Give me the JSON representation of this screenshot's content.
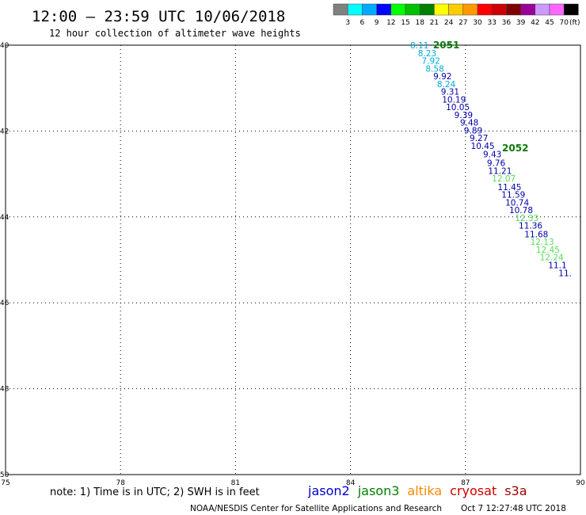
{
  "header": {
    "title": "12:00 – 23:59 UTC 10/06/2018",
    "subtitle": "12 hour collection of altimeter wave heights"
  },
  "colorbar": {
    "labels": [
      "3",
      "6",
      "9",
      "12",
      "15",
      "18",
      "21",
      "24",
      "27",
      "30",
      "33",
      "36",
      "39",
      "42",
      "45",
      "70"
    ],
    "unit": "(ft)",
    "colors": [
      "#808080",
      "#00ffff",
      "#00aaff",
      "#0000ff",
      "#00ff00",
      "#00c000",
      "#008000",
      "#ffff00",
      "#ffcc00",
      "#ff9900",
      "#ff0000",
      "#cc0000",
      "#800000",
      "#990099",
      "#cc99ff",
      "#ff66ff",
      "#000000"
    ]
  },
  "footer": {
    "note": "note: 1) Time is in UTC; 2) SWH is in feet",
    "satellites": [
      {
        "name": "jason2",
        "color": "#0000cc"
      },
      {
        "name": "jason3",
        "color": "#008000"
      },
      {
        "name": "altika",
        "color": "#ff8800"
      },
      {
        "name": "cryosat",
        "color": "#cc0000"
      },
      {
        "name": "s3a",
        "color": "#990000"
      }
    ],
    "credit": "NOAA/NESDIS Center for Satellite Applications and Research",
    "timestamp": "Oct  7 12:27:48 UTC 2018"
  },
  "chart_data": {
    "type": "scatter",
    "xlim": [
      75,
      90
    ],
    "ylim": [
      -50,
      -40
    ],
    "x_ticks": [
      "75",
      "78",
      "81",
      "84",
      "87",
      "90"
    ],
    "y_ticks": [
      "-40",
      "-42",
      "-44",
      "-46",
      "-48",
      "-50"
    ],
    "grid": true,
    "pass_labels": [
      {
        "text": "2051",
        "x": 86.5,
        "y": -40.0
      },
      {
        "text": "2052",
        "x": 88.3,
        "y": -42.4
      }
    ],
    "points": [
      {
        "label": "8.11",
        "x": 85.8,
        "y": -40.0,
        "color": "#00aadd"
      },
      {
        "label": "8.23",
        "x": 86.0,
        "y": -40.18,
        "color": "#00aadd"
      },
      {
        "label": "7.92",
        "x": 86.1,
        "y": -40.36,
        "color": "#00aadd"
      },
      {
        "label": "8.58",
        "x": 86.2,
        "y": -40.54,
        "color": "#00aadd"
      },
      {
        "label": "9.92",
        "x": 86.4,
        "y": -40.72,
        "color": "#0000aa"
      },
      {
        "label": "8.24",
        "x": 86.5,
        "y": -40.9,
        "color": "#00aadd"
      },
      {
        "label": "9.31",
        "x": 86.6,
        "y": -41.08,
        "color": "#0000aa"
      },
      {
        "label": "10.19",
        "x": 86.7,
        "y": -41.26,
        "color": "#0000aa"
      },
      {
        "label": "10.05",
        "x": 86.8,
        "y": -41.44,
        "color": "#0000aa"
      },
      {
        "label": "9.39",
        "x": 86.95,
        "y": -41.62,
        "color": "#0000aa"
      },
      {
        "label": "9.48",
        "x": 87.1,
        "y": -41.8,
        "color": "#0000aa"
      },
      {
        "label": "9.89",
        "x": 87.2,
        "y": -41.98,
        "color": "#0000aa"
      },
      {
        "label": "9.27",
        "x": 87.35,
        "y": -42.16,
        "color": "#0000aa"
      },
      {
        "label": "10.45",
        "x": 87.45,
        "y": -42.34,
        "color": "#0000aa"
      },
      {
        "label": "9.43",
        "x": 87.7,
        "y": -42.54,
        "color": "#0000aa"
      },
      {
        "label": "9.76",
        "x": 87.8,
        "y": -42.74,
        "color": "#0000aa"
      },
      {
        "label": "11.21",
        "x": 87.9,
        "y": -42.92,
        "color": "#0000aa"
      },
      {
        "label": "12.07",
        "x": 88.0,
        "y": -43.1,
        "color": "#55dd55"
      },
      {
        "label": "11.45",
        "x": 88.15,
        "y": -43.3,
        "color": "#0000aa"
      },
      {
        "label": "11.59",
        "x": 88.25,
        "y": -43.48,
        "color": "#0000aa"
      },
      {
        "label": "10.74",
        "x": 88.35,
        "y": -43.66,
        "color": "#0000aa"
      },
      {
        "label": "10.78",
        "x": 88.45,
        "y": -43.84,
        "color": "#0000aa"
      },
      {
        "label": "12.33",
        "x": 88.6,
        "y": -44.02,
        "color": "#55dd55"
      },
      {
        "label": "11.36",
        "x": 88.7,
        "y": -44.2,
        "color": "#0000aa"
      },
      {
        "label": "11.68",
        "x": 88.85,
        "y": -44.4,
        "color": "#0000aa"
      },
      {
        "label": "12.13",
        "x": 89.0,
        "y": -44.58,
        "color": "#55dd55"
      },
      {
        "label": "12.45",
        "x": 89.15,
        "y": -44.76,
        "color": "#55dd55"
      },
      {
        "label": "12.24",
        "x": 89.25,
        "y": -44.94,
        "color": "#55dd55"
      },
      {
        "label": "11.1",
        "x": 89.4,
        "y": -45.12,
        "color": "#0000aa"
      },
      {
        "label": "11.",
        "x": 89.6,
        "y": -45.3,
        "color": "#0000aa"
      }
    ]
  }
}
